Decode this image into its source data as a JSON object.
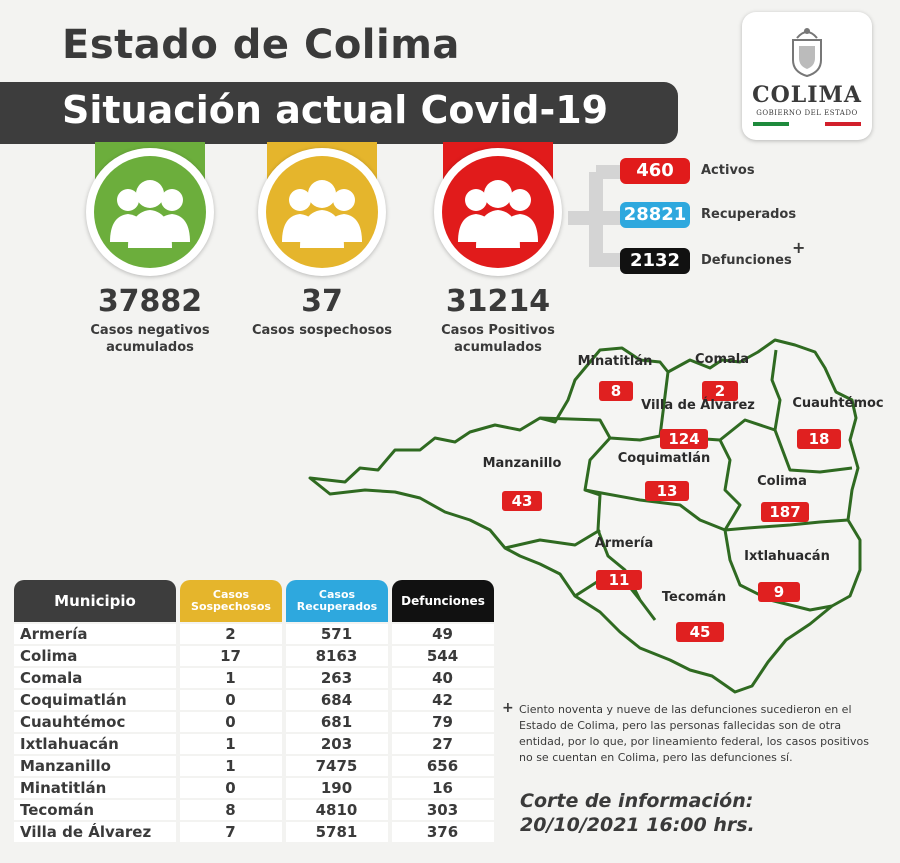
{
  "header": {
    "title": "Estado de Colima",
    "subtitle": "Situación actual Covid-19"
  },
  "logo": {
    "name": "COLIMA",
    "sub": "GOBIERNO DEL ESTADO"
  },
  "summary": [
    {
      "value": "37882",
      "label1": "Casos negativos",
      "label2": "acumulados",
      "color": "#6cae3c"
    },
    {
      "value": "37",
      "label1": "Casos sospechosos",
      "label2": "",
      "color": "#e5b52c"
    },
    {
      "value": "31214",
      "label1": "Casos Positivos",
      "label2": "acumulados",
      "color": "#e11b1b"
    }
  ],
  "status": [
    {
      "value": "460",
      "label": "Activos",
      "color": "#e11b1b"
    },
    {
      "value": "28821",
      "label": "Recuperados",
      "color": "#2ea8de"
    },
    {
      "value": "2132",
      "label": "Defunciones",
      "color": "#111111"
    }
  ],
  "defunciones_mark": "+",
  "table": {
    "headers": [
      {
        "text": "Municipio",
        "color": "#3d3d3d"
      },
      {
        "text": "Casos Sospechosos",
        "color": "#e5b52c"
      },
      {
        "text": "Casos Recuperados",
        "color": "#2ea8de"
      },
      {
        "text": "Defunciones",
        "color": "#111111"
      }
    ],
    "rows": [
      [
        "Armería",
        "2",
        "571",
        "49"
      ],
      [
        "Colima",
        "17",
        "8163",
        "544"
      ],
      [
        "Comala",
        "1",
        "263",
        "40"
      ],
      [
        "Coquimatlán",
        "0",
        "684",
        "42"
      ],
      [
        "Cuauhtémoc",
        "0",
        "681",
        "79"
      ],
      [
        "Ixtlahuacán",
        "1",
        "203",
        "27"
      ],
      [
        "Manzanillo",
        "1",
        "7475",
        "656"
      ],
      [
        "Minatitlán",
        "0",
        "190",
        "16"
      ],
      [
        "Tecomán",
        "8",
        "4810",
        "303"
      ],
      [
        "Villa de Álvarez",
        "7",
        "5781",
        "376"
      ]
    ]
  },
  "map": {
    "municipios": [
      {
        "name": "Minatitlán",
        "value": "8"
      },
      {
        "name": "Comala",
        "value": "2"
      },
      {
        "name": "Villa de Álvarez",
        "value": "124"
      },
      {
        "name": "Cuauhtémoc",
        "value": "18"
      },
      {
        "name": "Manzanillo",
        "value": "43"
      },
      {
        "name": "Coquimatlán",
        "value": "13"
      },
      {
        "name": "Colima",
        "value": "187"
      },
      {
        "name": "Armería",
        "value": "11"
      },
      {
        "name": "Ixtlahuacán",
        "value": "9"
      },
      {
        "name": "Tecomán",
        "value": "45"
      }
    ]
  },
  "note": {
    "mark": "+",
    "text": "Ciento noventa y nueve de las defunciones sucedieron en el Estado de Colima, pero las personas fallecidas son de otra entidad, por lo que, por lineamiento federal, los casos positivos no se cuentan en Colima, pero las defunciones sí."
  },
  "corte": {
    "line1": "Corte de información:",
    "line2": "20/10/2021 16:00 hrs."
  }
}
